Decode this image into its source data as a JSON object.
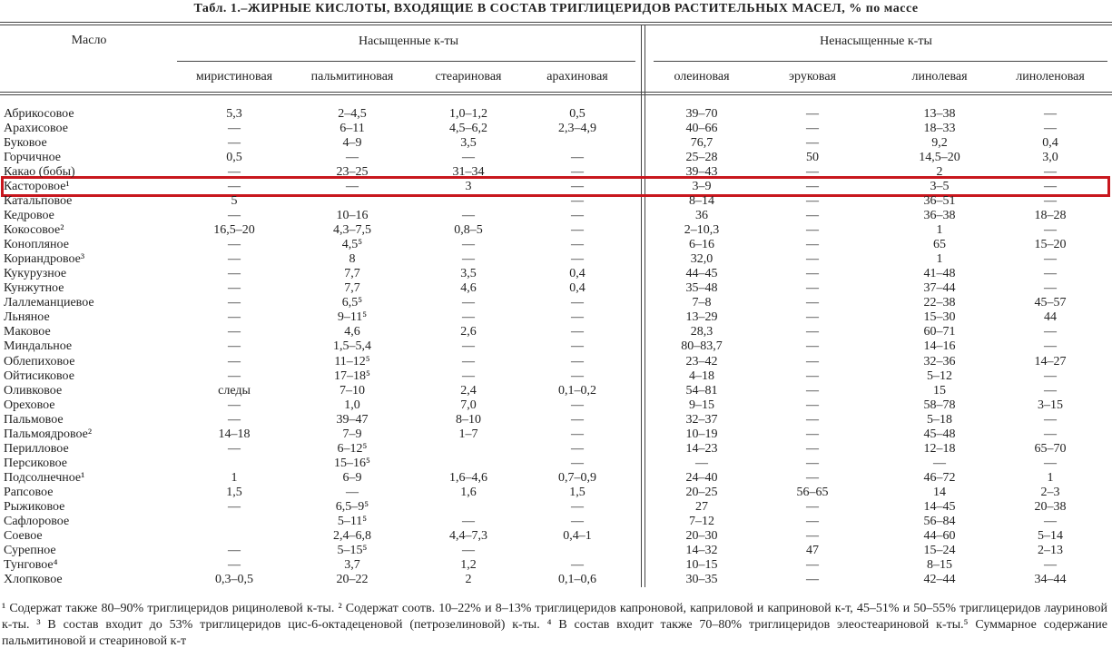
{
  "title": "Табл. 1.–ЖИРНЫЕ КИСЛОТЫ, ВХОДЯЩИЕ В СОСТАВ ТРИГЛИЦЕРИДОВ РАСТИТЕЛЬНЫХ МАСЕЛ, % по массе",
  "table": {
    "header": {
      "oil": "Масло",
      "saturated": "Насыщенные к-ты",
      "unsaturated": "Ненасыщенные к-ты"
    },
    "columns": [
      "миристиновая",
      "пальмитиновая",
      "стеариновая",
      "арахиновая",
      "олеиновая",
      "эруковая",
      "линолевая",
      "линоленовая"
    ],
    "rows": [
      [
        "Абрикосовое",
        "5,3",
        "2–4,5",
        "1,0–1,2",
        "0,5",
        "39–70",
        "—",
        "13–38",
        "—"
      ],
      [
        "Арахисовое",
        "—",
        "6–11",
        "4,5–6,2",
        "2,3–4,9",
        "40–66",
        "—",
        "18–33",
        "—"
      ],
      [
        "Буковое",
        "—",
        "4–9",
        "3,5",
        null,
        "76,7",
        "—",
        "9,2",
        "0,4"
      ],
      [
        "Горчичное",
        "0,5",
        "—",
        "—",
        "—",
        "25–28",
        "50",
        "14,5–20",
        "3,0"
      ],
      [
        "Какао (бобы)",
        "—",
        "23–25",
        "31–34",
        "—",
        "39–43",
        "—",
        "2",
        "—"
      ],
      [
        "Касторовое¹",
        "—",
        "—",
        "3",
        "—",
        "3–9",
        "—",
        "3–5",
        "—"
      ],
      [
        "Катальповое",
        "5",
        null,
        null,
        "—",
        "8–14",
        "—",
        "36–51",
        "—"
      ],
      [
        "Кедровое",
        "—",
        "10–16",
        "—",
        "—",
        "36",
        "—",
        "36–38",
        "18–28"
      ],
      [
        "Кокосовое²",
        "16,5–20",
        "4,3–7,5",
        "0,8–5",
        "—",
        "2–10,3",
        "—",
        "1",
        "—"
      ],
      [
        "Конопляное",
        "—",
        "4,5⁵",
        "—",
        "—",
        "6–16",
        "—",
        "65",
        "15–20"
      ],
      [
        "Кориандровое³",
        "—",
        "8",
        "—",
        "—",
        "32,0",
        "—",
        "1",
        "—"
      ],
      [
        "Кукурузное",
        "—",
        "7,7",
        "3,5",
        "0,4",
        "44–45",
        "—",
        "41–48",
        "—"
      ],
      [
        "Кунжутное",
        "—",
        "7,7",
        "4,6",
        "0,4",
        "35–48",
        "—",
        "37–44",
        "—"
      ],
      [
        "Лаллеманциевое",
        "—",
        "6,5⁵",
        "—",
        "—",
        "7–8",
        "—",
        "22–38",
        "45–57"
      ],
      [
        "Льняное",
        "—",
        "9–11⁵",
        "—",
        "—",
        "13–29",
        "—",
        "15–30",
        "44"
      ],
      [
        "Маковое",
        "—",
        "4,6",
        "2,6",
        "—",
        "28,3",
        "—",
        "60–71",
        "—"
      ],
      [
        "Миндальное",
        "—",
        "1,5–5,4",
        "—",
        "—",
        "80–83,7",
        "—",
        "14–16",
        "—"
      ],
      [
        "Облепиховое",
        "—",
        "11–12⁵",
        "—",
        "—",
        "23–42",
        "—",
        "32–36",
        "14–27"
      ],
      [
        "Ойтисиковое",
        "—",
        "17–18⁵",
        "—",
        "—",
        "4–18",
        "—",
        "5–12",
        "—"
      ],
      [
        "Оливковое",
        "следы",
        "7–10",
        "2,4",
        "0,1–0,2",
        "54–81",
        "—",
        "15",
        "—"
      ],
      [
        "Ореховое",
        "—",
        "1,0",
        "7,0",
        "—",
        "9–15",
        "—",
        "58–78",
        "3–15"
      ],
      [
        "Пальмовое",
        "—",
        "39–47",
        "8–10",
        "—",
        "32–37",
        "—",
        "5–18",
        "—"
      ],
      [
        "Пальмоядровое²",
        "14–18",
        "7–9",
        "1–7",
        "—",
        "10–19",
        "—",
        "45–48",
        "—"
      ],
      [
        "Перилловое",
        "—",
        "6–12⁵",
        null,
        "—",
        "14–23",
        "—",
        "12–18",
        "65–70"
      ],
      [
        "Персиковое",
        null,
        "15–16⁵",
        null,
        "—",
        "—",
        "—",
        "—",
        "—"
      ],
      [
        "Подсолнечное¹",
        "1",
        "6–9",
        "1,6–4,6",
        "0,7–0,9",
        "24–40",
        "—",
        "46–72",
        "1"
      ],
      [
        "Рапсовое",
        "1,5",
        "—",
        "1,6",
        "1,5",
        "20–25",
        "56–65",
        "14",
        "2–3"
      ],
      [
        "Рыжиковое",
        "—",
        "6,5–9⁵",
        null,
        "—",
        "27",
        "—",
        "14–45",
        "20–38"
      ],
      [
        "Сафлоровое",
        null,
        "5–11⁵",
        "—",
        "—",
        "7–12",
        "—",
        "56–84",
        "—"
      ],
      [
        "Соевое",
        null,
        "2,4–6,8",
        "4,4–7,3",
        "0,4–1",
        "20–30",
        "—",
        "44–60",
        "5–14"
      ],
      [
        "Сурепное",
        "—",
        "5–15⁵",
        "—",
        null,
        "14–32",
        "47",
        "15–24",
        "2–13"
      ],
      [
        "Тунговое⁴",
        "—",
        "3,7",
        "1,2",
        "—",
        "10–15",
        "—",
        "8–15",
        "—"
      ],
      [
        "Хлопковое",
        "0,3–0,5",
        "20–22",
        "2",
        "0,1–0,6",
        "30–35",
        "—",
        "42–44",
        "34–44"
      ]
    ]
  },
  "footnotes": "¹ Содержат также 80–90% триглицеридов рицинолевой к-ты. ² Содержат соотв. 10–22% и 8–13% триглицеридов капроновой, каприловой и каприновой к-т, 45–51% и 50–55% триглицеридов лауриновой к-ты. ³ В состав входит до 53% триглицеридов цис-6-октадеценовой (петрозелиновой) к-ты. ⁴ В состав входит также 70–80% триглицеридов элеостеариновой к-ты.⁵ Суммарное содержание пальмитиновой и стеариновой к-т"
}
